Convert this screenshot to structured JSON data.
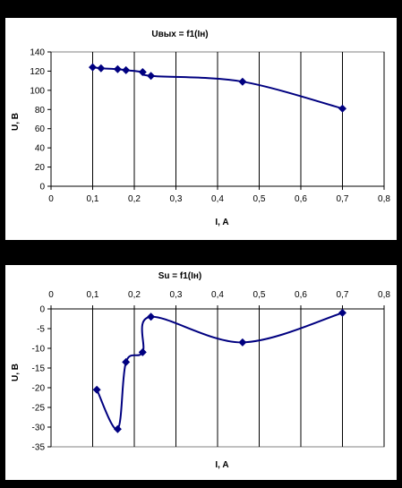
{
  "chart_data": [
    {
      "type": "line",
      "title": "Uвых = f1(Iн)",
      "xlabel": "I, A",
      "ylabel": "U, B",
      "xlim": [
        0,
        0.8
      ],
      "ylim": [
        0,
        140
      ],
      "x_ticks": [
        "0",
        "0,1",
        "0,2",
        "0,3",
        "0,4",
        "0,5",
        "0,6",
        "0,7",
        "0,8"
      ],
      "y_ticks": [
        "0",
        "20",
        "40",
        "60",
        "80",
        "100",
        "120",
        "140"
      ],
      "series": [
        {
          "x": [
            0.1,
            0.12,
            0.16,
            0.18,
            0.22,
            0.24,
            0.46,
            0.7
          ],
          "y": [
            124,
            123,
            122,
            121,
            119,
            115,
            109,
            81
          ]
        }
      ],
      "grid": "vertical",
      "color": "#000080"
    },
    {
      "type": "line",
      "title": "Su = f1(Iн)",
      "xlabel": "I, A",
      "ylabel": "U, B",
      "xlim": [
        0,
        0.8
      ],
      "ylim": [
        -35,
        0
      ],
      "x_ticks": [
        "0",
        "0,1",
        "0,2",
        "0,3",
        "0,4",
        "0,5",
        "0,6",
        "0,7",
        "0,8"
      ],
      "y_ticks": [
        "0",
        "-5",
        "-10",
        "-15",
        "-20",
        "-25",
        "-30",
        "-35"
      ],
      "series": [
        {
          "x": [
            0.11,
            0.16,
            0.18,
            0.22,
            0.24,
            0.46,
            0.7
          ],
          "y": [
            -20.5,
            -30.5,
            -13.5,
            -11,
            -2,
            -8.5,
            -1
          ]
        }
      ],
      "grid": "vertical",
      "color": "#000080"
    }
  ]
}
